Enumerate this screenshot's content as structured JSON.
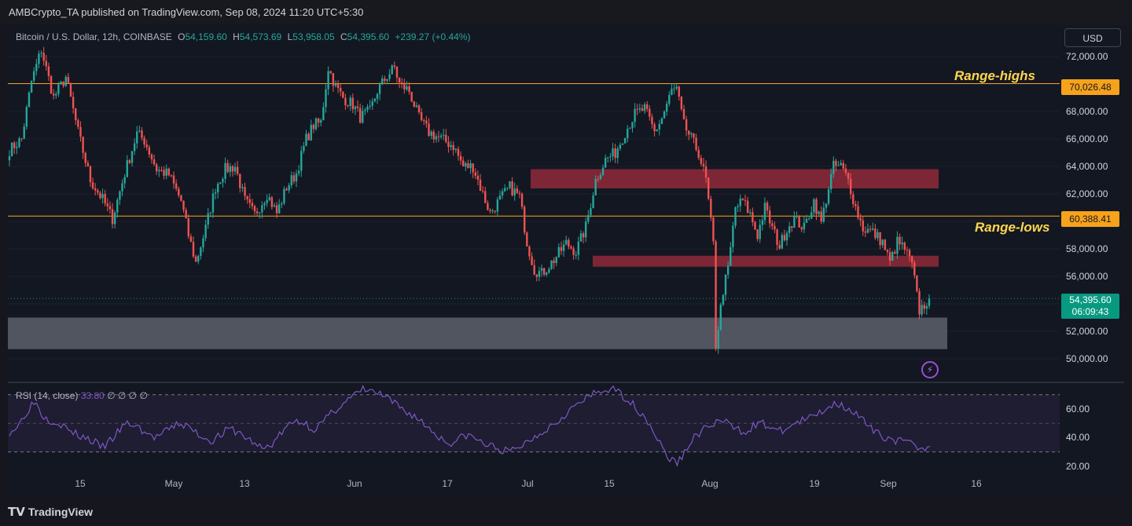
{
  "header": {
    "published": "AMBCrypto_TA published on TradingView.com, Sep 08, 2024 11:20 UTC+5:30"
  },
  "legend": {
    "symbol": "Bitcoin / U.S. Dollar, 12h, COINBASE",
    "o_label": "O",
    "o": "54,159.60",
    "h_label": "H",
    "h": "54,573.69",
    "l_label": "L",
    "l": "53,958.05",
    "c_label": "C",
    "c": "54,395.60",
    "change": "+239.27 (+0.44%)"
  },
  "currency_button": "USD",
  "annotations": {
    "range_highs": "Range-highs",
    "range_lows": "Range-lows"
  },
  "badges": {
    "range_high": "70,026.48",
    "range_low": "60,388.41",
    "current_price": "54,395.60",
    "countdown": "06:09:43"
  },
  "rsi_legend": {
    "name": "RSI (14, close)",
    "value": "33.80",
    "extras": "∅ ∅ ∅ ∅"
  },
  "footer": {
    "brand": "TradingView"
  },
  "colors": {
    "up": "#26a69a",
    "down": "#ef5350",
    "range_line": "#f7a21b",
    "rsi_line": "#7e57c2",
    "zone": "#a12c3c",
    "demand_zone": "#5d606b"
  },
  "chart_data": [
    {
      "type": "candlestick",
      "title": "Bitcoin / U.S. Dollar, 12h, COINBASE",
      "y_ticks": [
        "72,000.00",
        "70,000.00",
        "68,000.00",
        "66,000.00",
        "64,000.00",
        "62,000.00",
        "60,000.00",
        "58,000.00",
        "56,000.00",
        "54,000.00",
        "52,000.00",
        "50,000.00"
      ],
      "ylim": [
        48400,
        72800
      ],
      "x_ticks": [
        "15",
        "May",
        "13",
        "Jun",
        "17",
        "Jul",
        "15",
        "Aug",
        "19",
        "Sep",
        "16"
      ],
      "close_path": [
        [
          0,
          65200
        ],
        [
          5,
          66000
        ],
        [
          9,
          70200
        ],
        [
          13,
          72500
        ],
        [
          18,
          69000
        ],
        [
          23,
          70500
        ],
        [
          28,
          66500
        ],
        [
          33,
          63000
        ],
        [
          38,
          61600
        ],
        [
          42,
          60200
        ],
        [
          47,
          63500
        ],
        [
          52,
          66400
        ],
        [
          55,
          65900
        ],
        [
          60,
          63800
        ],
        [
          65,
          63400
        ],
        [
          70,
          61500
        ],
        [
          73,
          59000
        ],
        [
          76,
          57000
        ],
        [
          80,
          59500
        ],
        [
          84,
          62500
        ],
        [
          88,
          63800
        ],
        [
          92,
          64000
        ],
        [
          96,
          61500
        ],
        [
          100,
          60500
        ],
        [
          105,
          62000
        ],
        [
          109,
          60600
        ],
        [
          113,
          62500
        ],
        [
          117,
          63500
        ],
        [
          121,
          66000
        ],
        [
          124,
          67000
        ],
        [
          127,
          67200
        ],
        [
          130,
          71200
        ],
        [
          133,
          69800
        ],
        [
          136,
          69000
        ],
        [
          140,
          68500
        ],
        [
          143,
          67600
        ],
        [
          147,
          68000
        ],
        [
          150,
          69500
        ],
        [
          154,
          70600
        ],
        [
          157,
          71200
        ],
        [
          159,
          70000
        ],
        [
          163,
          69500
        ],
        [
          167,
          67500
        ],
        [
          171,
          66500
        ],
        [
          176,
          66000
        ],
        [
          181,
          65500
        ],
        [
          185,
          64000
        ],
        [
          189,
          64000
        ],
        [
          193,
          62000
        ],
        [
          196,
          60600
        ],
        [
          200,
          61600
        ],
        [
          204,
          62500
        ],
        [
          208,
          61800
        ],
        [
          211,
          58500
        ],
        [
          214,
          56500
        ],
        [
          217,
          56200
        ],
        [
          222,
          57200
        ],
        [
          227,
          58400
        ],
        [
          231,
          57800
        ],
        [
          235,
          59600
        ],
        [
          239,
          63000
        ],
        [
          243,
          64500
        ],
        [
          247,
          65000
        ],
        [
          251,
          66500
        ],
        [
          255,
          67800
        ],
        [
          259,
          68200
        ],
        [
          263,
          66500
        ],
        [
          266,
          67500
        ],
        [
          270,
          69500
        ],
        [
          272,
          69600
        ],
        [
          275,
          67000
        ],
        [
          278,
          66000
        ],
        [
          281,
          65000
        ],
        [
          284,
          63000
        ],
        [
          287,
          58300
        ],
        [
          288,
          51000
        ],
        [
          291,
          55000
        ],
        [
          293,
          56500
        ],
        [
          296,
          61000
        ],
        [
          299,
          61500
        ],
        [
          302,
          60500
        ],
        [
          305,
          59000
        ],
        [
          308,
          61000
        ],
        [
          311,
          59500
        ],
        [
          314,
          58200
        ],
        [
          317,
          59500
        ],
        [
          320,
          60200
        ],
        [
          324,
          59500
        ],
        [
          328,
          61500
        ],
        [
          331,
          59900
        ],
        [
          334,
          62500
        ],
        [
          336,
          64000
        ],
        [
          339,
          64000
        ],
        [
          342,
          63000
        ],
        [
          345,
          61000
        ],
        [
          348,
          59500
        ],
        [
          352,
          59200
        ],
        [
          356,
          58500
        ],
        [
          359,
          57000
        ],
        [
          362,
          58500
        ],
        [
          365,
          58000
        ],
        [
          368,
          56800
        ],
        [
          371,
          53500
        ],
        [
          375,
          54400
        ]
      ],
      "range_highs": 70026.48,
      "range_lows": 60388.41,
      "current": 54395.6,
      "zones": [
        {
          "kind": "supply",
          "ymin": 62400,
          "ymax": 63800
        },
        {
          "kind": "supply",
          "ymin": 56700,
          "ymax": 57500
        },
        {
          "kind": "demand",
          "ymin": 50700,
          "ymax": 53000
        }
      ]
    },
    {
      "type": "line",
      "title": "RSI (14, close)",
      "y_ticks": [
        "60.00",
        "40.00",
        "20.00"
      ],
      "ylim": [
        15,
        77
      ],
      "bands": [
        30,
        70
      ],
      "series": [
        {
          "values": [
            44,
            48,
            58,
            66,
            55,
            52,
            50,
            45,
            42,
            40,
            37,
            33,
            38,
            45,
            50,
            48,
            44,
            40,
            42,
            46,
            50,
            48,
            44,
            40,
            38,
            42,
            46,
            44,
            40,
            36,
            32,
            35,
            42,
            48,
            52,
            50,
            46,
            50,
            56,
            62,
            66,
            70,
            74,
            72,
            70,
            66,
            62,
            58,
            55,
            50,
            45,
            40,
            36,
            38,
            42,
            40,
            36,
            34,
            32,
            30,
            32,
            36,
            40,
            44,
            48,
            52,
            58,
            62,
            66,
            70,
            72,
            74,
            72,
            68,
            62,
            56,
            48,
            36,
            26,
            22,
            30,
            40,
            45,
            48,
            52,
            50,
            46,
            44,
            48,
            50,
            48,
            44,
            46,
            50,
            52,
            54,
            58,
            62,
            64,
            62,
            58,
            52,
            46,
            42,
            40,
            38,
            37,
            35,
            33,
            33.8
          ]
        }
      ]
    }
  ]
}
